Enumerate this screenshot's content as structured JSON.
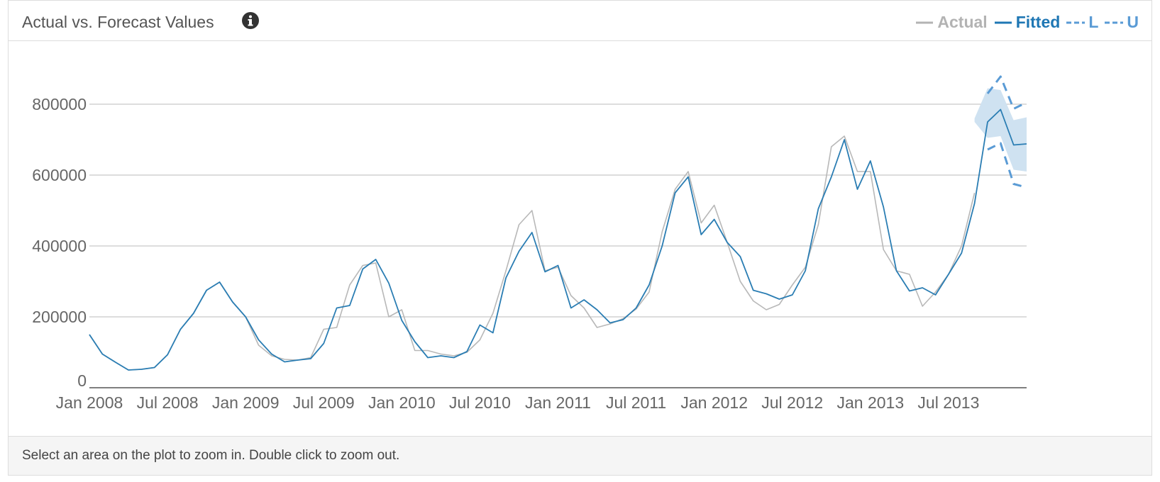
{
  "panel": {
    "title": "Actual vs. Forecast Values",
    "info_icon": "info-circle-icon",
    "footer_text": "Select an area on the plot to zoom in. Double click to zoom out."
  },
  "legend": [
    {
      "label": "Actual",
      "color": "#b3b3b3",
      "dash": false
    },
    {
      "label": "Fitted",
      "color": "#1f77b4",
      "dash": false
    },
    {
      "label": "L",
      "color": "#5a9bd5",
      "dash": true
    },
    {
      "label": "U",
      "color": "#5a9bd5",
      "dash": true
    }
  ],
  "colors": {
    "actual": "#b8b8b8",
    "fitted": "#2a7db3",
    "bounds": "#5a9bd5",
    "band": "#cfe2f1",
    "grid": "#bbbbbb",
    "axis": "#555555"
  },
  "chart_data": {
    "type": "line",
    "title": "Actual vs. Forecast Values",
    "xlabel": "",
    "ylabel": "",
    "ylim": [
      0,
      800000
    ],
    "yticks": [
      0,
      200000,
      400000,
      600000,
      800000
    ],
    "ytick_labels": [
      "0",
      "200000",
      "400000",
      "600000",
      "800000"
    ],
    "xticks": [
      "2008-01",
      "2008-07",
      "2009-01",
      "2009-07",
      "2010-01",
      "2010-07",
      "2011-01",
      "2011-07",
      "2012-01",
      "2012-07",
      "2013-01",
      "2013-07"
    ],
    "xtick_labels": [
      "Jan 2008",
      "Jul 2008",
      "Jan 2009",
      "Jul 2009",
      "Jan 2010",
      "Jul 2010",
      "Jan 2011",
      "Jul 2011",
      "Jan 2012",
      "Jul 2012",
      "Jan 2013",
      "Jul 2013"
    ],
    "xrange": [
      "2008-01",
      "2014-01"
    ],
    "grid": true,
    "legend_position": "top-right",
    "start": "2008-01",
    "series": [
      {
        "name": "Actual",
        "values": [
          150000,
          95000,
          72000,
          50000,
          52000,
          57000,
          93000,
          165000,
          210000,
          275000,
          298000,
          242000,
          200000,
          120000,
          90000,
          80000,
          78000,
          85000,
          165000,
          170000,
          290000,
          345000,
          352000,
          200000,
          220000,
          105000,
          105000,
          95000,
          90000,
          100000,
          135000,
          210000,
          330000,
          460000,
          500000,
          330000,
          340000,
          260000,
          225000,
          170000,
          180000,
          195000,
          222000,
          270000,
          440000,
          560000,
          610000,
          465000,
          515000,
          410000,
          300000,
          245000,
          220000,
          235000,
          290000,
          340000,
          460000,
          680000,
          710000,
          610000,
          610000,
          390000,
          330000,
          320000,
          230000,
          270000,
          320000,
          400000,
          550000
        ]
      },
      {
        "name": "Fitted",
        "values": [
          150000,
          95000,
          72000,
          50000,
          52000,
          57000,
          93000,
          165000,
          210000,
          275000,
          298000,
          242000,
          200000,
          135000,
          95000,
          73000,
          78000,
          82000,
          125000,
          225000,
          232000,
          335000,
          362000,
          295000,
          190000,
          130000,
          85000,
          90000,
          85000,
          102000,
          177000,
          155000,
          310000,
          385000,
          438000,
          327000,
          345000,
          225000,
          248000,
          220000,
          183000,
          192000,
          225000,
          290000,
          400000,
          550000,
          595000,
          432000,
          475000,
          410000,
          370000,
          275000,
          265000,
          250000,
          262000,
          330000,
          505000,
          595000,
          700000,
          560000,
          640000,
          510000,
          330000,
          273000,
          282000,
          262000,
          320000,
          380000,
          520000,
          750000,
          785000,
          685000,
          688000
        ]
      },
      {
        "name": "L",
        "values": [
          672000,
          690000,
          575000,
          565000
        ],
        "start": "2013-10"
      },
      {
        "name": "U",
        "values": [
          830000,
          878000,
          787000,
          805000
        ],
        "start": "2013-10"
      }
    ],
    "confidence_band": {
      "start": "2013-09",
      "lower": [
        750000,
        705000,
        710000,
        615000,
        610000
      ],
      "upper": [
        760000,
        845000,
        840000,
        755000,
        763000
      ]
    }
  }
}
